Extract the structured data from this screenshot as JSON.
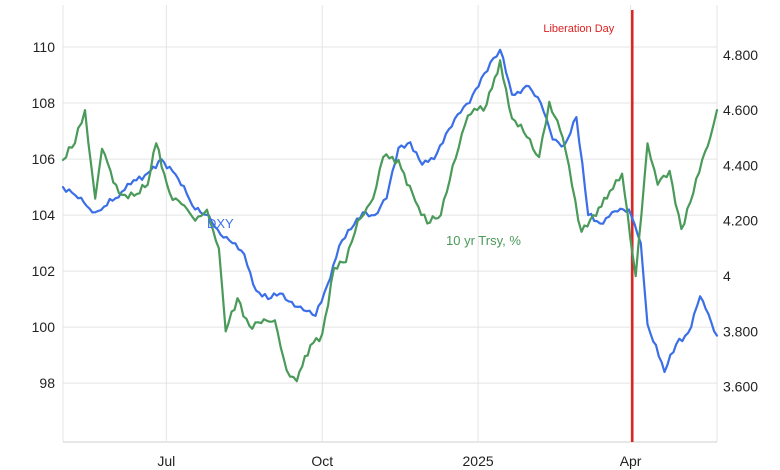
{
  "chart_data": {
    "type": "line",
    "title": "",
    "grid": true,
    "x_ticks": [
      "Jul",
      "Oct",
      "2025",
      "Apr"
    ],
    "x_range": [
      "2024-05-01",
      "2025-05-22"
    ],
    "y_left": {
      "ticks": [
        "98",
        "100",
        "102",
        "104",
        "106",
        "108",
        "110"
      ],
      "range": [
        95.9,
        111.5
      ]
    },
    "y_right": {
      "ticks": [
        "3.600",
        "3.800",
        "4",
        "4.200",
        "4.400",
        "4.600",
        "4.800"
      ],
      "range": [
        3.4,
        4.98
      ]
    },
    "annotations": [
      {
        "label": "Liberation Day",
        "date": "2025-04-02",
        "color": "#dd2222"
      }
    ],
    "series": [
      {
        "name": "DXY",
        "axis": "left",
        "color": "#3b6fe8",
        "points": [
          [
            "2024-05-01",
            105.0
          ],
          [
            "2024-05-10",
            104.6
          ],
          [
            "2024-05-20",
            104.1
          ],
          [
            "2024-06-01",
            104.6
          ],
          [
            "2024-06-10",
            105.1
          ],
          [
            "2024-06-20",
            105.5
          ],
          [
            "2024-06-28",
            106.0
          ],
          [
            "2024-07-08",
            105.3
          ],
          [
            "2024-07-18",
            104.2
          ],
          [
            "2024-07-26",
            104.0
          ],
          [
            "2024-08-02",
            103.3
          ],
          [
            "2024-08-09",
            103.0
          ],
          [
            "2024-08-16",
            102.6
          ],
          [
            "2024-08-23",
            101.3
          ],
          [
            "2024-08-30",
            101.0
          ],
          [
            "2024-09-06",
            101.2
          ],
          [
            "2024-09-13",
            100.9
          ],
          [
            "2024-09-20",
            100.6
          ],
          [
            "2024-09-27",
            100.4
          ],
          [
            "2024-10-04",
            101.5
          ],
          [
            "2024-10-11",
            102.9
          ],
          [
            "2024-10-18",
            103.5
          ],
          [
            "2024-10-25",
            104.1
          ],
          [
            "2024-11-01",
            104.0
          ],
          [
            "2024-11-08",
            104.6
          ],
          [
            "2024-11-15",
            106.4
          ],
          [
            "2024-11-22",
            106.6
          ],
          [
            "2024-11-29",
            105.8
          ],
          [
            "2024-12-06",
            106.0
          ],
          [
            "2024-12-13",
            106.9
          ],
          [
            "2024-12-20",
            107.6
          ],
          [
            "2024-12-27",
            108.0
          ],
          [
            "2025-01-03",
            108.9
          ],
          [
            "2025-01-10",
            109.6
          ],
          [
            "2025-01-14",
            109.9
          ],
          [
            "2025-01-21",
            108.3
          ],
          [
            "2025-01-31",
            108.6
          ],
          [
            "2025-02-07",
            108.0
          ],
          [
            "2025-02-14",
            106.7
          ],
          [
            "2025-02-21",
            106.5
          ],
          [
            "2025-02-28",
            107.5
          ],
          [
            "2025-03-07",
            104.0
          ],
          [
            "2025-03-14",
            103.7
          ],
          [
            "2025-03-21",
            104.1
          ],
          [
            "2025-03-31",
            104.2
          ],
          [
            "2025-04-07",
            103.0
          ],
          [
            "2025-04-11",
            100.1
          ],
          [
            "2025-04-21",
            98.4
          ],
          [
            "2025-04-28",
            99.4
          ],
          [
            "2025-05-05",
            99.8
          ],
          [
            "2025-05-12",
            101.1
          ],
          [
            "2025-05-22",
            99.7
          ]
        ]
      },
      {
        "name": "10 yr Trsy, %",
        "axis": "right",
        "color": "#4a9a5a",
        "points": [
          [
            "2024-05-01",
            4.42
          ],
          [
            "2024-05-08",
            4.48
          ],
          [
            "2024-05-14",
            4.6
          ],
          [
            "2024-05-20",
            4.28
          ],
          [
            "2024-05-24",
            4.46
          ],
          [
            "2024-06-03",
            4.3
          ],
          [
            "2024-06-12",
            4.29
          ],
          [
            "2024-06-20",
            4.33
          ],
          [
            "2024-06-25",
            4.48
          ],
          [
            "2024-07-03",
            4.3
          ],
          [
            "2024-07-10",
            4.26
          ],
          [
            "2024-07-18",
            4.2
          ],
          [
            "2024-07-25",
            4.24
          ],
          [
            "2024-08-01",
            4.1
          ],
          [
            "2024-08-05",
            3.8
          ],
          [
            "2024-08-12",
            3.92
          ],
          [
            "2024-08-19",
            3.82
          ],
          [
            "2024-08-26",
            3.83
          ],
          [
            "2024-09-03",
            3.84
          ],
          [
            "2024-09-10",
            3.66
          ],
          [
            "2024-09-16",
            3.62
          ],
          [
            "2024-09-24",
            3.75
          ],
          [
            "2024-10-01",
            3.79
          ],
          [
            "2024-10-08",
            4.03
          ],
          [
            "2024-10-15",
            4.05
          ],
          [
            "2024-10-22",
            4.2
          ],
          [
            "2024-10-31",
            4.28
          ],
          [
            "2024-11-06",
            4.43
          ],
          [
            "2024-11-15",
            4.42
          ],
          [
            "2024-11-25",
            4.27
          ],
          [
            "2024-12-02",
            4.19
          ],
          [
            "2024-12-10",
            4.22
          ],
          [
            "2024-12-17",
            4.4
          ],
          [
            "2024-12-26",
            4.58
          ],
          [
            "2025-01-06",
            4.62
          ],
          [
            "2025-01-14",
            4.78
          ],
          [
            "2025-01-21",
            4.57
          ],
          [
            "2025-01-28",
            4.52
          ],
          [
            "2025-02-06",
            4.43
          ],
          [
            "2025-02-12",
            4.63
          ],
          [
            "2025-02-20",
            4.5
          ],
          [
            "2025-03-03",
            4.16
          ],
          [
            "2025-03-10",
            4.22
          ],
          [
            "2025-03-18",
            4.28
          ],
          [
            "2025-03-27",
            4.37
          ],
          [
            "2025-04-04",
            4.0
          ],
          [
            "2025-04-11",
            4.48
          ],
          [
            "2025-04-17",
            4.33
          ],
          [
            "2025-04-24",
            4.38
          ],
          [
            "2025-05-01",
            4.17
          ],
          [
            "2025-05-08",
            4.3
          ],
          [
            "2025-05-15",
            4.45
          ],
          [
            "2025-05-18",
            4.5
          ],
          [
            "2025-05-22",
            4.6
          ]
        ]
      }
    ]
  }
}
